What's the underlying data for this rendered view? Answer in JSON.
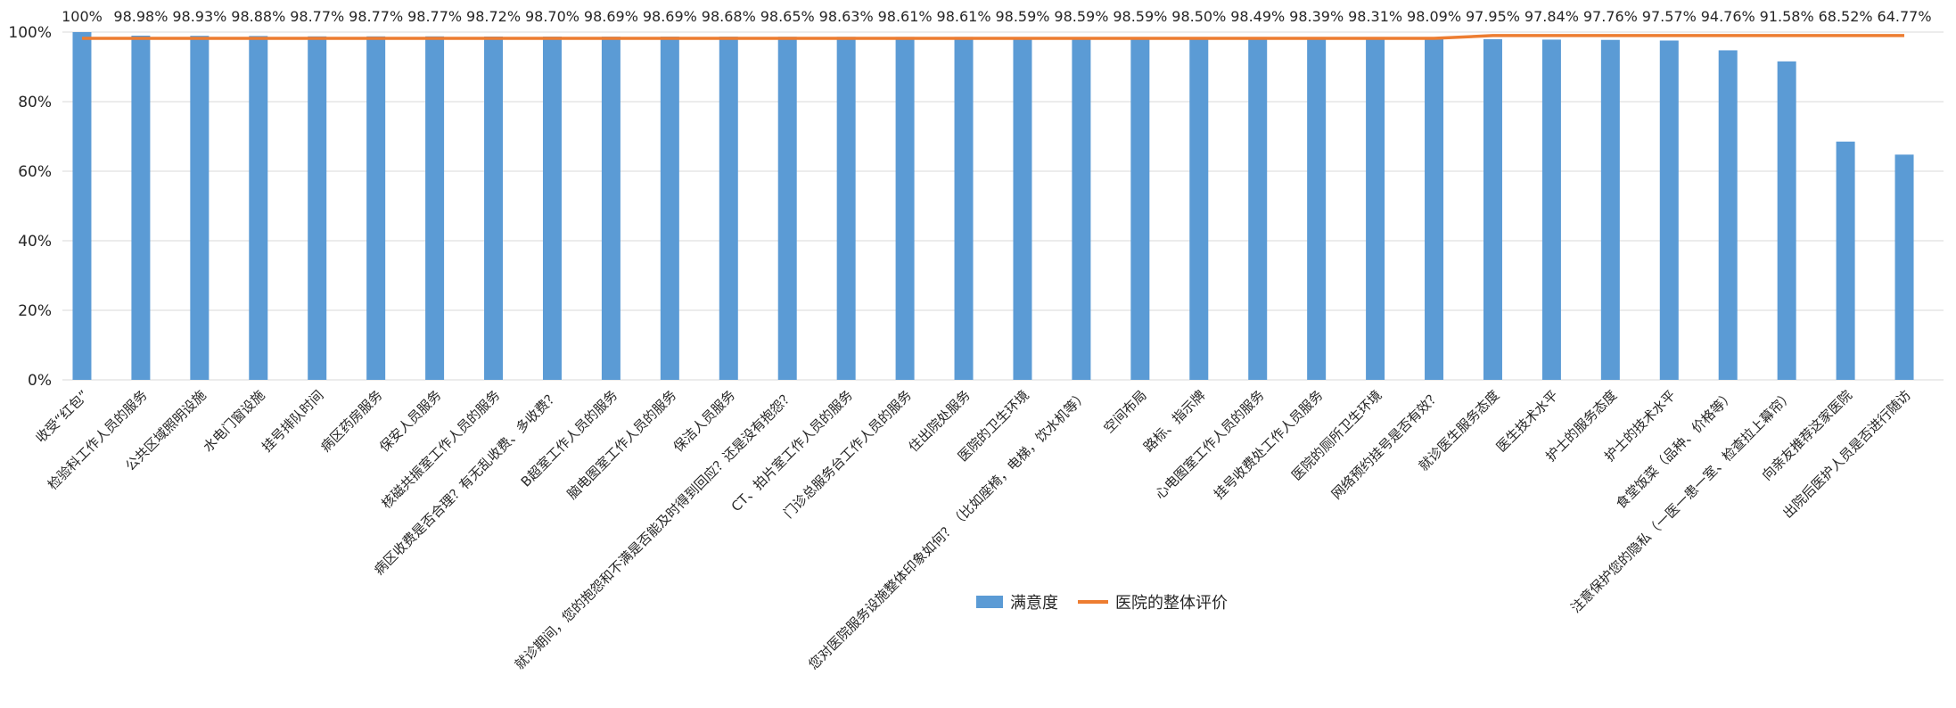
{
  "chart_data": {
    "type": "bar",
    "title": "",
    "xlabel": "",
    "ylabel": "",
    "ylim": [
      0,
      100
    ],
    "yticks": [
      "0%",
      "20%",
      "40%",
      "60%",
      "80%",
      "100%"
    ],
    "grid": true,
    "legend_position": "bottom",
    "categories": [
      "收受“红包”",
      "检验科工作人员的服务",
      "公共区域照明设施",
      "水电门窗设施",
      "挂号排队时间",
      "病区药房服务",
      "保安人员服务",
      "核磁共振室工作人员的服务",
      "病区收费是否合理？有无乱收费、多收费？",
      "B超室工作人员的服务",
      "脑电图室工作人员的服务",
      "保洁人员服务",
      "就诊期间，您的抱怨和不满是否能及时得到回应？还是没有抱怨？",
      "CT、拍片室工作人员的服务",
      "门诊总服务台工作人员的服务",
      "住出院处服务",
      "医院的卫生环境",
      "您对医院服务设施整体印象如何？（比如座椅，电梯，饮水机等）",
      "空间布局",
      "路标、指示牌",
      "心电图室工作人员的服务",
      "挂号收费处工作人员服务",
      "医院的厕所卫生环境",
      "网络预约挂号是否有效？",
      "就诊医生服务态度",
      "医生技术水平",
      "护士的服务态度",
      "护士的技术水平",
      "食堂饭菜（品种、价格等）",
      "注意保护您的隐私（一医一患一室、检查拉上幕帘）",
      "向亲友推荐这家医院",
      "出院后医护人员是否进行随访"
    ],
    "series": [
      {
        "name": "满意度",
        "type": "bar",
        "color": "#5B9BD5",
        "values": [
          100,
          98.98,
          98.93,
          98.88,
          98.77,
          98.77,
          98.77,
          98.72,
          98.7,
          98.69,
          98.69,
          98.68,
          98.65,
          98.63,
          98.61,
          98.61,
          98.59,
          98.59,
          98.59,
          98.5,
          98.49,
          98.39,
          98.31,
          98.09,
          97.95,
          97.84,
          97.76,
          97.57,
          94.76,
          91.58,
          68.52,
          64.77
        ],
        "labels": [
          "100%",
          "98.98%",
          "98.93%",
          "98.88%",
          "98.77%",
          "98.77%",
          "98.77%",
          "98.72%",
          "98.70%",
          "98.69%",
          "98.69%",
          "98.68%",
          "98.65%",
          "98.63%",
          "98.61%",
          "98.61%",
          "98.59%",
          "98.59%",
          "98.59%",
          "98.50%",
          "98.49%",
          "98.39%",
          "98.31%",
          "98.09%",
          "97.95%",
          "97.84%",
          "97.76%",
          "97.57%",
          "94.76%",
          "91.58%",
          "68.52%",
          "64.77%"
        ]
      },
      {
        "name": "医院的整体评价",
        "type": "line",
        "color": "#ED7D31",
        "values": [
          98.2,
          98.2,
          98.2,
          98.2,
          98.2,
          98.2,
          98.2,
          98.2,
          98.2,
          98.2,
          98.2,
          98.2,
          98.2,
          98.2,
          98.2,
          98.2,
          98.2,
          98.2,
          98.2,
          98.2,
          98.2,
          98.2,
          98.2,
          98.2,
          99.0,
          99.0,
          99.0,
          99.0,
          99.0,
          99.0,
          99.0,
          99.0
        ]
      }
    ]
  }
}
